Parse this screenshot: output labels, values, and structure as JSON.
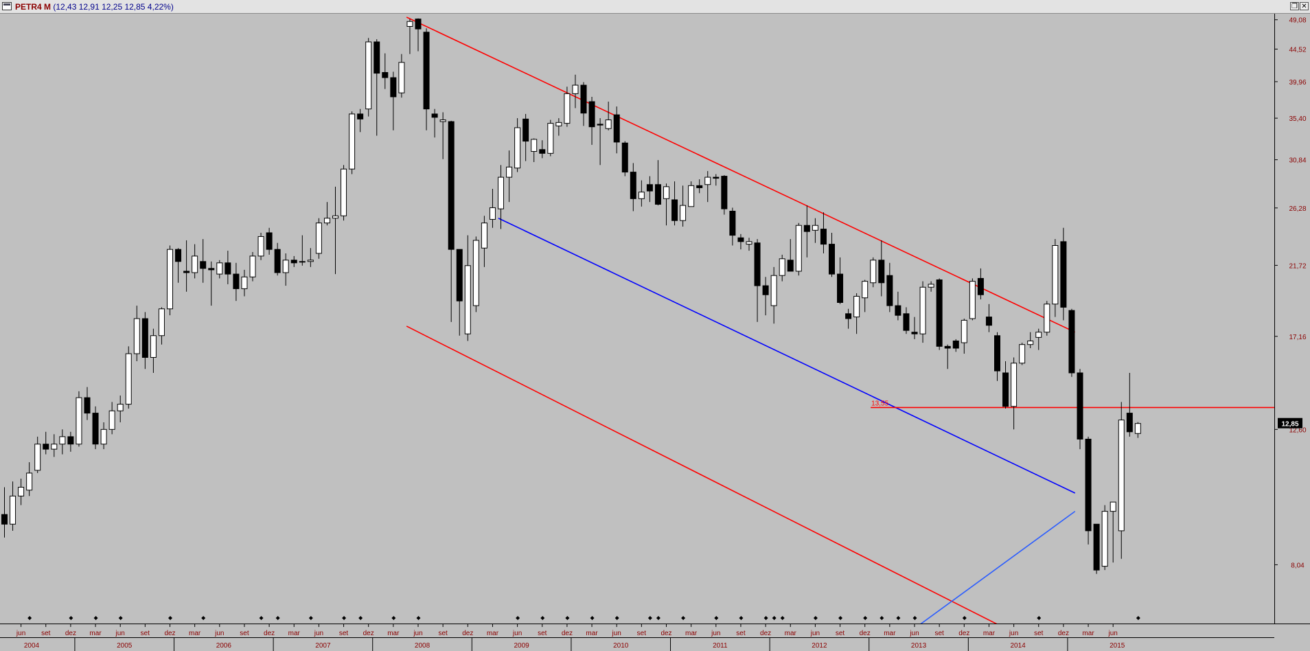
{
  "window": {
    "symbol": "PETR4 M",
    "ohlc_text": "(12,43  12,91  12,25  12,85  4,22%)",
    "restore_icon": "restore-window-icon",
    "close_icon": "close-window-icon"
  },
  "colors": {
    "background": "#c0c0c0",
    "candle_up": "#ffffff",
    "candle_down": "#000000",
    "channel_red": "#ff0000",
    "channel_blue": "#0000ff",
    "support_blue": "#2a5cff",
    "axis_text": "#8b0000"
  },
  "chart_data": {
    "type": "candlestick",
    "grid": false,
    "y_axis": {
      "position": "right",
      "scale": "log",
      "range": [
        6.6,
        49.5
      ],
      "ticks": [
        "49,08",
        "44,52",
        "39,96",
        "35,40",
        "30,84",
        "26,28",
        "21,72",
        "17,16",
        "12,60",
        "8,04"
      ],
      "tick_values": [
        49.08,
        44.52,
        39.96,
        35.4,
        30.84,
        26.28,
        21.72,
        17.16,
        12.6,
        8.04
      ],
      "last_price_label": "12,85",
      "last_price": 12.85
    },
    "x_axis": {
      "first_bar": "2004-04",
      "months": [
        "jun",
        "set",
        "dez",
        "mar",
        "jun",
        "set",
        "dez",
        "mar",
        "jun",
        "set",
        "dez",
        "mar",
        "jun",
        "set",
        "dez",
        "mar",
        "jun",
        "set",
        "dez",
        "mar",
        "jun",
        "set",
        "dez",
        "mar",
        "jun",
        "set",
        "dez",
        "mar",
        "jun",
        "set",
        "dez",
        "mar",
        "jun",
        "set",
        "dez",
        "mar",
        "jun",
        "set",
        "dez",
        "mar",
        "jun",
        "set",
        "dez",
        "mar",
        "jun"
      ],
      "years": [
        "2004",
        "2005",
        "2006",
        "2007",
        "2008",
        "2009",
        "2010",
        "2011",
        "2012",
        "2013",
        "2014",
        "2015"
      ]
    },
    "series": [
      {
        "values": [
          {
            "o": 9.5,
            "h": 10.4,
            "l": 8.8,
            "c": 9.2
          },
          {
            "o": 9.2,
            "h": 10.6,
            "l": 9.0,
            "c": 10.1
          },
          {
            "o": 10.1,
            "h": 10.7,
            "l": 9.8,
            "c": 10.4
          },
          {
            "o": 10.3,
            "h": 11.3,
            "l": 10.1,
            "c": 10.9
          },
          {
            "o": 11.0,
            "h": 12.3,
            "l": 10.9,
            "c": 12.0
          },
          {
            "o": 12.0,
            "h": 12.5,
            "l": 11.6,
            "c": 11.8
          },
          {
            "o": 11.8,
            "h": 12.4,
            "l": 11.5,
            "c": 12.0
          },
          {
            "o": 12.0,
            "h": 12.6,
            "l": 11.6,
            "c": 12.3
          },
          {
            "o": 12.3,
            "h": 12.5,
            "l": 11.7,
            "c": 12.0
          },
          {
            "o": 12.0,
            "h": 14.3,
            "l": 11.9,
            "c": 14.0
          },
          {
            "o": 14.0,
            "h": 14.5,
            "l": 13.0,
            "c": 13.3
          },
          {
            "o": 13.3,
            "h": 13.6,
            "l": 11.8,
            "c": 12.0
          },
          {
            "o": 12.0,
            "h": 12.9,
            "l": 11.8,
            "c": 12.6
          },
          {
            "o": 12.6,
            "h": 13.8,
            "l": 12.4,
            "c": 13.4
          },
          {
            "o": 13.4,
            "h": 14.1,
            "l": 12.9,
            "c": 13.7
          },
          {
            "o": 13.7,
            "h": 16.6,
            "l": 13.5,
            "c": 16.2
          },
          {
            "o": 16.2,
            "h": 19.0,
            "l": 15.8,
            "c": 18.2
          },
          {
            "o": 18.2,
            "h": 18.6,
            "l": 15.4,
            "c": 16.0
          },
          {
            "o": 16.0,
            "h": 17.6,
            "l": 15.2,
            "c": 17.2
          },
          {
            "o": 17.2,
            "h": 18.9,
            "l": 16.7,
            "c": 18.8
          },
          {
            "o": 18.8,
            "h": 23.2,
            "l": 18.4,
            "c": 22.9
          },
          {
            "o": 22.9,
            "h": 23.0,
            "l": 20.5,
            "c": 22.0
          },
          {
            "o": 21.3,
            "h": 23.6,
            "l": 19.9,
            "c": 21.2
          },
          {
            "o": 21.2,
            "h": 23.3,
            "l": 20.8,
            "c": 22.4
          },
          {
            "o": 22.0,
            "h": 23.7,
            "l": 20.5,
            "c": 21.5
          },
          {
            "o": 21.5,
            "h": 22.0,
            "l": 19.0,
            "c": 21.4
          },
          {
            "o": 21.1,
            "h": 22.1,
            "l": 20.8,
            "c": 21.9
          },
          {
            "o": 21.9,
            "h": 22.8,
            "l": 20.4,
            "c": 21.1
          },
          {
            "o": 21.1,
            "h": 21.9,
            "l": 19.3,
            "c": 20.1
          },
          {
            "o": 20.1,
            "h": 21.4,
            "l": 19.6,
            "c": 20.9
          },
          {
            "o": 20.9,
            "h": 22.7,
            "l": 20.6,
            "c": 22.4
          },
          {
            "o": 22.4,
            "h": 24.2,
            "l": 22.1,
            "c": 23.9
          },
          {
            "o": 24.2,
            "h": 24.6,
            "l": 22.5,
            "c": 22.9
          },
          {
            "o": 22.9,
            "h": 23.4,
            "l": 21.0,
            "c": 21.2
          },
          {
            "o": 21.2,
            "h": 22.6,
            "l": 20.3,
            "c": 22.1
          },
          {
            "o": 22.1,
            "h": 22.4,
            "l": 21.6,
            "c": 21.9
          },
          {
            "o": 22.0,
            "h": 24.0,
            "l": 21.7,
            "c": 22.0
          },
          {
            "o": 22.0,
            "h": 23.0,
            "l": 21.6,
            "c": 22.1
          },
          {
            "o": 22.6,
            "h": 25.4,
            "l": 22.2,
            "c": 25.0
          },
          {
            "o": 25.0,
            "h": 26.8,
            "l": 24.8,
            "c": 25.4
          },
          {
            "o": 25.4,
            "h": 28.2,
            "l": 21.1,
            "c": 25.6
          },
          {
            "o": 25.6,
            "h": 30.3,
            "l": 25.2,
            "c": 29.9
          },
          {
            "o": 29.9,
            "h": 36.2,
            "l": 29.4,
            "c": 35.9
          },
          {
            "o": 35.9,
            "h": 36.5,
            "l": 33.8,
            "c": 35.3
          },
          {
            "o": 36.5,
            "h": 46.2,
            "l": 35.6,
            "c": 45.6
          },
          {
            "o": 45.6,
            "h": 46.0,
            "l": 33.4,
            "c": 41.1
          },
          {
            "o": 41.2,
            "h": 43.9,
            "l": 39.0,
            "c": 40.5
          },
          {
            "o": 40.5,
            "h": 41.3,
            "l": 34.0,
            "c": 38.0
          },
          {
            "o": 38.5,
            "h": 43.8,
            "l": 37.9,
            "c": 42.6
          },
          {
            "o": 48.0,
            "h": 49.2,
            "l": 43.8,
            "c": 48.8
          },
          {
            "o": 49.2,
            "h": 49.3,
            "l": 44.2,
            "c": 47.6
          },
          {
            "o": 47.1,
            "h": 47.7,
            "l": 34.0,
            "c": 36.5
          },
          {
            "o": 35.9,
            "h": 36.5,
            "l": 33.2,
            "c": 35.5
          },
          {
            "o": 35.0,
            "h": 36.1,
            "l": 30.9,
            "c": 35.2
          },
          {
            "o": 35.0,
            "h": 35.1,
            "l": 18.0,
            "c": 22.9
          },
          {
            "o": 22.9,
            "h": 22.9,
            "l": 17.2,
            "c": 19.3
          },
          {
            "o": 17.3,
            "h": 24.0,
            "l": 16.9,
            "c": 21.7
          },
          {
            "o": 19.0,
            "h": 23.9,
            "l": 18.6,
            "c": 23.6
          },
          {
            "o": 23.0,
            "h": 25.6,
            "l": 21.6,
            "c": 25.0
          },
          {
            "o": 25.3,
            "h": 28.0,
            "l": 24.6,
            "c": 26.3
          },
          {
            "o": 26.2,
            "h": 30.3,
            "l": 24.5,
            "c": 29.1
          },
          {
            "o": 29.1,
            "h": 31.8,
            "l": 26.8,
            "c": 30.1
          },
          {
            "o": 30.0,
            "h": 35.4,
            "l": 29.6,
            "c": 34.3
          },
          {
            "o": 35.3,
            "h": 35.9,
            "l": 30.7,
            "c": 32.8
          },
          {
            "o": 31.7,
            "h": 33.1,
            "l": 30.6,
            "c": 33.0
          },
          {
            "o": 31.9,
            "h": 32.9,
            "l": 31.0,
            "c": 31.5
          },
          {
            "o": 31.5,
            "h": 35.2,
            "l": 31.2,
            "c": 34.8
          },
          {
            "o": 34.5,
            "h": 35.4,
            "l": 33.4,
            "c": 34.9
          },
          {
            "o": 34.8,
            "h": 39.3,
            "l": 34.4,
            "c": 38.4
          },
          {
            "o": 38.4,
            "h": 40.9,
            "l": 36.6,
            "c": 39.5
          },
          {
            "o": 39.5,
            "h": 39.9,
            "l": 34.5,
            "c": 36.0
          },
          {
            "o": 37.4,
            "h": 38.0,
            "l": 32.4,
            "c": 34.4
          },
          {
            "o": 34.7,
            "h": 35.4,
            "l": 30.3,
            "c": 34.6
          },
          {
            "o": 34.2,
            "h": 37.4,
            "l": 34.0,
            "c": 35.2
          },
          {
            "o": 35.8,
            "h": 36.8,
            "l": 31.5,
            "c": 32.7
          },
          {
            "o": 32.6,
            "h": 32.8,
            "l": 29.2,
            "c": 29.6
          },
          {
            "o": 29.6,
            "h": 30.5,
            "l": 26.0,
            "c": 27.1
          },
          {
            "o": 27.1,
            "h": 28.8,
            "l": 26.4,
            "c": 27.7
          },
          {
            "o": 28.4,
            "h": 29.2,
            "l": 26.8,
            "c": 27.8
          },
          {
            "o": 28.4,
            "h": 30.8,
            "l": 26.5,
            "c": 26.6
          },
          {
            "o": 27.1,
            "h": 28.5,
            "l": 24.8,
            "c": 28.2
          },
          {
            "o": 27.0,
            "h": 28.7,
            "l": 24.8,
            "c": 25.2
          },
          {
            "o": 25.2,
            "h": 28.3,
            "l": 24.7,
            "c": 26.5
          },
          {
            "o": 26.4,
            "h": 28.7,
            "l": 27.0,
            "c": 28.3
          },
          {
            "o": 28.3,
            "h": 28.9,
            "l": 27.6,
            "c": 28.1
          },
          {
            "o": 28.4,
            "h": 29.7,
            "l": 26.8,
            "c": 29.1
          },
          {
            "o": 29.1,
            "h": 29.4,
            "l": 28.3,
            "c": 29.0
          },
          {
            "o": 29.2,
            "h": 29.3,
            "l": 25.7,
            "c": 26.2
          },
          {
            "o": 26.0,
            "h": 26.3,
            "l": 23.2,
            "c": 24.0
          },
          {
            "o": 23.8,
            "h": 24.1,
            "l": 22.9,
            "c": 23.5
          },
          {
            "o": 23.3,
            "h": 23.8,
            "l": 22.8,
            "c": 23.5
          },
          {
            "o": 23.4,
            "h": 23.7,
            "l": 18.0,
            "c": 20.3
          },
          {
            "o": 20.3,
            "h": 20.9,
            "l": 18.4,
            "c": 19.7
          },
          {
            "o": 19.0,
            "h": 21.6,
            "l": 17.9,
            "c": 21.0
          },
          {
            "o": 21.0,
            "h": 22.5,
            "l": 20.6,
            "c": 22.2
          },
          {
            "o": 22.1,
            "h": 23.7,
            "l": 21.6,
            "c": 21.3
          },
          {
            "o": 21.3,
            "h": 25.0,
            "l": 21.0,
            "c": 24.8
          },
          {
            "o": 24.8,
            "h": 26.5,
            "l": 22.3,
            "c": 24.3
          },
          {
            "o": 24.4,
            "h": 25.4,
            "l": 23.4,
            "c": 24.8
          },
          {
            "o": 24.5,
            "h": 25.9,
            "l": 22.6,
            "c": 23.3
          },
          {
            "o": 23.3,
            "h": 24.2,
            "l": 20.9,
            "c": 21.1
          },
          {
            "o": 21.1,
            "h": 22.3,
            "l": 19.1,
            "c": 19.2
          },
          {
            "o": 18.5,
            "h": 18.8,
            "l": 17.6,
            "c": 18.2
          },
          {
            "o": 18.3,
            "h": 19.8,
            "l": 17.3,
            "c": 19.6
          },
          {
            "o": 19.5,
            "h": 20.7,
            "l": 18.6,
            "c": 20.6
          },
          {
            "o": 20.5,
            "h": 22.3,
            "l": 20.2,
            "c": 22.1
          },
          {
            "o": 22.1,
            "h": 23.6,
            "l": 19.6,
            "c": 20.5
          },
          {
            "o": 21.0,
            "h": 21.9,
            "l": 18.6,
            "c": 19.0
          },
          {
            "o": 19.0,
            "h": 19.9,
            "l": 18.1,
            "c": 18.4
          },
          {
            "o": 18.5,
            "h": 18.9,
            "l": 17.3,
            "c": 17.5
          },
          {
            "o": 17.4,
            "h": 18.3,
            "l": 17.0,
            "c": 17.3
          },
          {
            "o": 17.3,
            "h": 20.6,
            "l": 16.8,
            "c": 20.2
          },
          {
            "o": 20.2,
            "h": 20.6,
            "l": 19.9,
            "c": 20.4
          },
          {
            "o": 20.7,
            "h": 20.8,
            "l": 16.4,
            "c": 16.6
          },
          {
            "o": 16.6,
            "h": 16.7,
            "l": 15.4,
            "c": 16.5
          },
          {
            "o": 16.9,
            "h": 17.0,
            "l": 16.3,
            "c": 16.5
          },
          {
            "o": 16.8,
            "h": 18.2,
            "l": 16.2,
            "c": 18.1
          },
          {
            "o": 18.2,
            "h": 20.8,
            "l": 18.1,
            "c": 20.6
          },
          {
            "o": 20.8,
            "h": 21.5,
            "l": 19.4,
            "c": 19.7
          },
          {
            "o": 18.3,
            "h": 19.1,
            "l": 17.4,
            "c": 17.8
          },
          {
            "o": 17.2,
            "h": 17.4,
            "l": 14.8,
            "c": 15.3
          },
          {
            "o": 15.2,
            "h": 15.8,
            "l": 13.5,
            "c": 13.6
          },
          {
            "o": 13.6,
            "h": 16.0,
            "l": 12.6,
            "c": 15.7
          },
          {
            "o": 15.7,
            "h": 16.8,
            "l": 15.6,
            "c": 16.7
          },
          {
            "o": 16.7,
            "h": 17.4,
            "l": 16.5,
            "c": 16.9
          },
          {
            "o": 17.1,
            "h": 17.6,
            "l": 16.4,
            "c": 17.4
          },
          {
            "o": 17.4,
            "h": 19.3,
            "l": 17.2,
            "c": 19.1
          },
          {
            "o": 19.1,
            "h": 23.7,
            "l": 18.3,
            "c": 23.2
          },
          {
            "o": 23.5,
            "h": 24.6,
            "l": 18.1,
            "c": 18.9
          },
          {
            "o": 18.7,
            "h": 18.8,
            "l": 15.0,
            "c": 15.2
          },
          {
            "o": 15.2,
            "h": 15.4,
            "l": 11.8,
            "c": 12.2
          },
          {
            "o": 12.2,
            "h": 12.3,
            "l": 8.6,
            "c": 9.0
          },
          {
            "o": 9.2,
            "h": 9.2,
            "l": 7.8,
            "c": 7.9
          },
          {
            "o": 8.0,
            "h": 9.8,
            "l": 7.9,
            "c": 9.6
          },
          {
            "o": 9.6,
            "h": 9.9,
            "l": 8.1,
            "c": 9.9
          },
          {
            "o": 9.0,
            "h": 13.8,
            "l": 8.2,
            "c": 13.0
          },
          {
            "o": 13.3,
            "h": 15.2,
            "l": 12.3,
            "c": 12.5
          },
          {
            "o": 12.43,
            "h": 12.91,
            "l": 12.25,
            "c": 12.85
          }
        ]
      }
    ],
    "lines": [
      {
        "name": "upper-channel",
        "color": "#ff0000",
        "points": [
          [
            48.6,
            49.5
          ],
          [
            129.4,
            17.4
          ]
        ]
      },
      {
        "name": "lower-channel",
        "color": "#ff0000",
        "points": [
          [
            48.6,
            17.75
          ],
          [
            120.0,
            6.6
          ]
        ]
      },
      {
        "name": "mid-channel",
        "color": "#0000ff",
        "points": [
          [
            59.7,
            25.4
          ],
          [
            129.4,
            10.2
          ]
        ]
      },
      {
        "name": "support-line",
        "color": "#2a5cff",
        "points": [
          [
            110.7,
            6.6
          ],
          [
            129.4,
            9.6
          ]
        ]
      }
    ],
    "horizontal_line": {
      "label": "13,55",
      "value": 13.55,
      "from_bar": 104.7,
      "color": "#ff0000"
    }
  }
}
